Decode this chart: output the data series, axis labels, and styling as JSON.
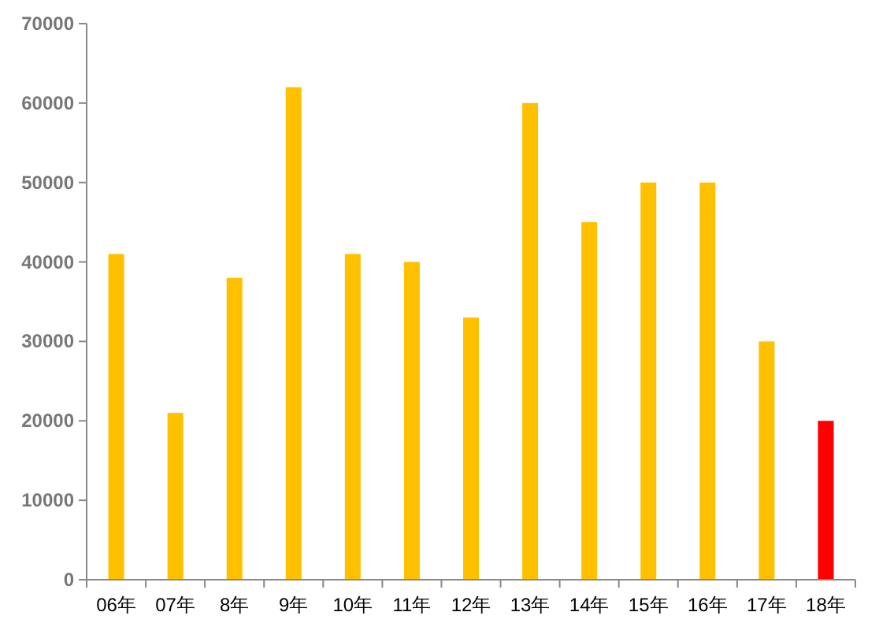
{
  "chart_data": {
    "type": "bar",
    "categories": [
      "06年",
      "07年",
      "8年",
      "9年",
      "10年",
      "11年",
      "12年",
      "13年",
      "14年",
      "15年",
      "16年",
      "17年",
      "18年"
    ],
    "values": [
      41000,
      21000,
      38000,
      62000,
      41000,
      40000,
      33000,
      60000,
      45000,
      50000,
      50000,
      30000,
      20000
    ],
    "colors": [
      "#ffc000",
      "#ffc000",
      "#ffc000",
      "#ffc000",
      "#ffc000",
      "#ffc000",
      "#ffc000",
      "#ffc000",
      "#ffc000",
      "#ffc000",
      "#ffc000",
      "#ffc000",
      "#ff0000"
    ],
    "ylim": [
      0,
      70000
    ],
    "yticks": [
      0,
      10000,
      20000,
      30000,
      40000,
      50000,
      60000,
      70000
    ],
    "grid": false
  }
}
